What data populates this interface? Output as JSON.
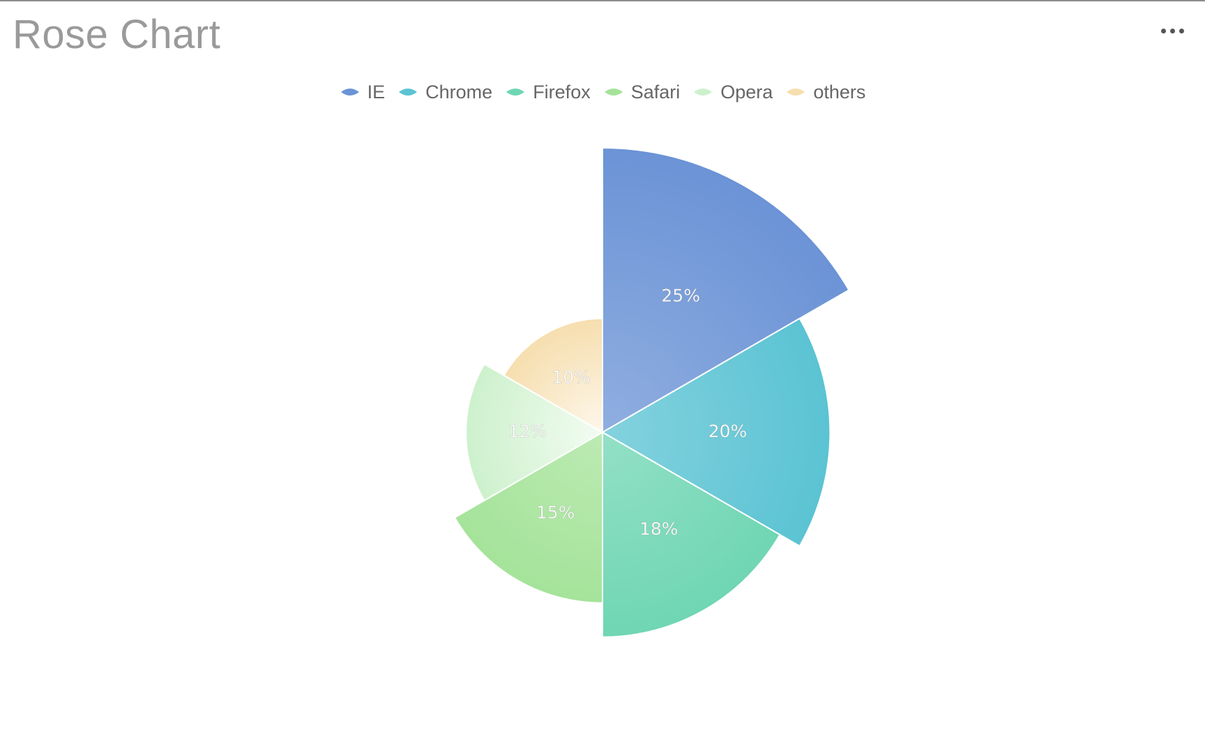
{
  "title": "Rose Chart",
  "menu": {
    "icon": "more-dots-icon"
  },
  "legend_marker_icon": "diamond-icon",
  "chart_data": {
    "type": "pie",
    "subtype": "rose",
    "title": "Rose Chart",
    "categories": [
      "IE",
      "Chrome",
      "Firefox",
      "Safari",
      "Opera",
      "others"
    ],
    "values": [
      25,
      20,
      18,
      15,
      12,
      10
    ],
    "value_labels": [
      "25%",
      "20%",
      "18%",
      "15%",
      "12%",
      "10%"
    ],
    "colors": [
      "#6b93d6",
      "#5bc3d3",
      "#6fd6b3",
      "#a5e39a",
      "#cdf1cc",
      "#f6deae"
    ],
    "legend_placement": "top-center",
    "angle_mode": "equal-slices",
    "radius_mode": "proportional-to-value"
  }
}
